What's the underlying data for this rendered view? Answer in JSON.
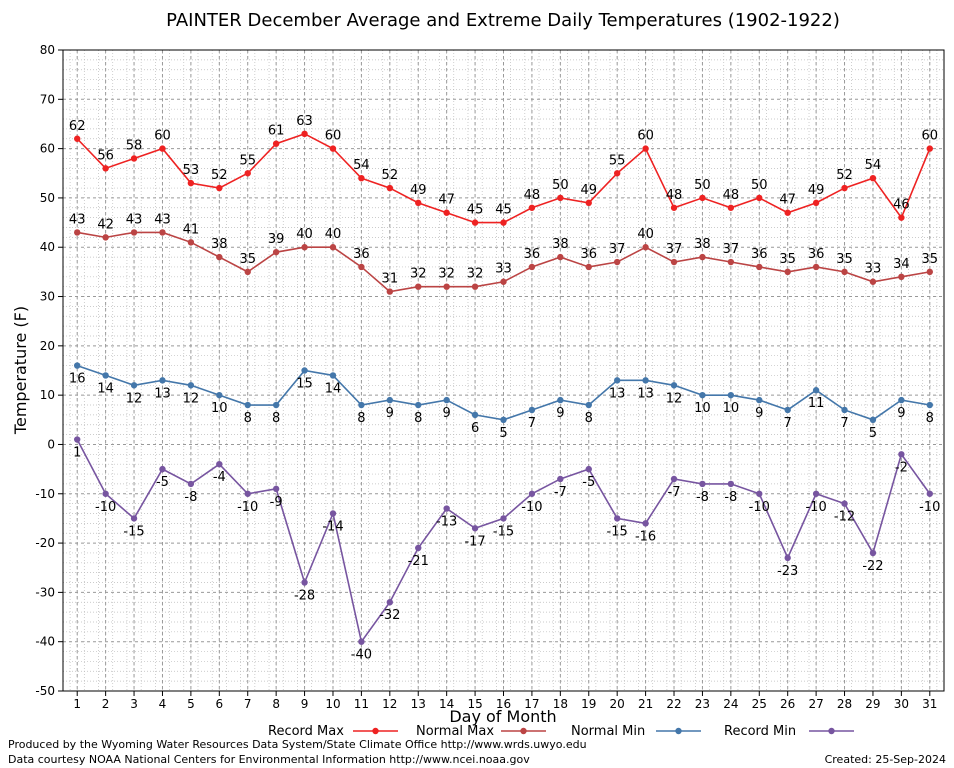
{
  "chart_data": {
    "type": "line",
    "title": "PAINTER December Average and Extreme Daily Temperatures (1902-1922)",
    "xlabel": "Day of Month",
    "ylabel": "Temperature (F)",
    "ylim": [
      -50,
      80
    ],
    "yticks": [
      -50,
      -40,
      -30,
      -20,
      -10,
      0,
      10,
      20,
      30,
      40,
      50,
      60,
      70,
      80
    ],
    "x": [
      1,
      2,
      3,
      4,
      5,
      6,
      7,
      8,
      9,
      10,
      11,
      12,
      13,
      14,
      15,
      16,
      17,
      18,
      19,
      20,
      21,
      22,
      23,
      24,
      25,
      26,
      27,
      28,
      29,
      30,
      31
    ],
    "grid": true,
    "legend_position": "bottom",
    "series": [
      {
        "name": "Record Max",
        "color": "#ee2222",
        "values": [
          62,
          56,
          58,
          60,
          53,
          52,
          55,
          61,
          63,
          60,
          54,
          52,
          49,
          47,
          45,
          45,
          48,
          50,
          49,
          55,
          60,
          48,
          50,
          48,
          50,
          47,
          49,
          52,
          54,
          46,
          60
        ]
      },
      {
        "name": "Normal Max",
        "color": "#bb4444",
        "values": [
          43,
          42,
          43,
          43,
          41,
          38,
          35,
          39,
          40,
          40,
          36,
          31,
          32,
          32,
          32,
          33,
          36,
          38,
          36,
          37,
          40,
          37,
          38,
          37,
          36,
          35,
          36,
          35,
          33,
          34,
          35
        ]
      },
      {
        "name": "Normal Min",
        "color": "#4477aa",
        "values": [
          16,
          14,
          12,
          13,
          12,
          10,
          8,
          8,
          15,
          14,
          8,
          9,
          8,
          9,
          6,
          5,
          7,
          9,
          8,
          13,
          13,
          12,
          10,
          10,
          9,
          7,
          11,
          7,
          5,
          9,
          8
        ]
      },
      {
        "name": "Record Min",
        "color": "#7755a0",
        "values": [
          1,
          -10,
          -15,
          -5,
          -8,
          -4,
          -10,
          -9,
          -28,
          -14,
          -40,
          -32,
          -21,
          -13,
          -17,
          -15,
          -10,
          -7,
          -5,
          -15,
          -16,
          -7,
          -8,
          -8,
          -10,
          -23,
          -10,
          -12,
          -22,
          -2,
          -10
        ]
      }
    ]
  },
  "footer": {
    "credit_line1": "Produced by the Wyoming Water Resources Data System/State Climate Office http://www.wrds.uwyo.edu",
    "credit_line2": "Data courtesy NOAA National Centers for Environmental Information http://www.ncei.noaa.gov",
    "created": "Created:  25-Sep-2024"
  }
}
